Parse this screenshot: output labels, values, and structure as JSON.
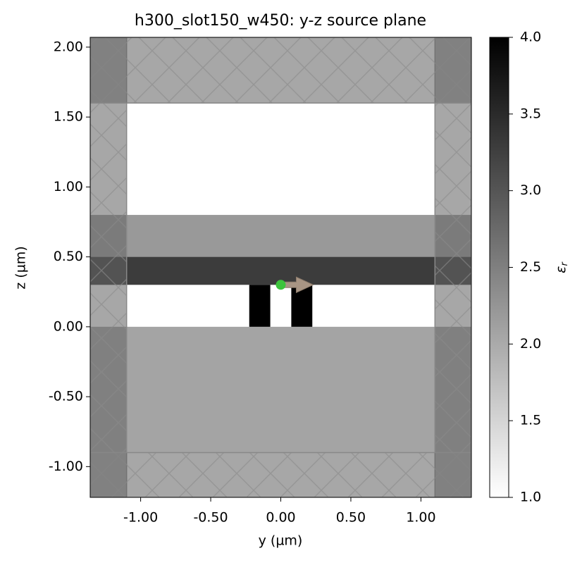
{
  "chart_data": {
    "type": "permittivity",
    "title": "h300_slot150_w450: y-z source plane",
    "xlabel": "y (µm)",
    "ylabel": "z (µm)",
    "xlim": [
      -1.36,
      1.36
    ],
    "ylim": [
      -1.22,
      2.07
    ],
    "xticks": [
      {
        "value": -1,
        "label": "-1.00"
      },
      {
        "value": -0.5,
        "label": "-0.50"
      },
      {
        "value": 0,
        "label": "0.00"
      },
      {
        "value": 0.5,
        "label": "0.50"
      },
      {
        "value": 1,
        "label": "1.00"
      }
    ],
    "yticks": [
      {
        "value": -1,
        "label": "-1.00"
      },
      {
        "value": -0.5,
        "label": "-0.50"
      },
      {
        "value": 0,
        "label": "0.00"
      },
      {
        "value": 0.5,
        "label": "0.50"
      },
      {
        "value": 1,
        "label": "1.00"
      },
      {
        "value": 1.5,
        "label": "1.50"
      },
      {
        "value": 2,
        "label": "2.00"
      }
    ],
    "structures": [
      {
        "y": [
          -1.36,
          1.36
        ],
        "z": [
          -0.9,
          0
        ],
        "eps": 2.07
      },
      {
        "y": [
          -1.36,
          1.36
        ],
        "z": [
          0.5,
          0.8
        ],
        "eps": 2.2
      },
      {
        "y": [
          -1.36,
          1.36
        ],
        "z": [
          0.3,
          0.5
        ],
        "eps": 3.3
      },
      {
        "y": [
          -0.225,
          -0.075
        ],
        "z": [
          0,
          0.3
        ],
        "eps": 4
      },
      {
        "y": [
          0.075,
          0.225
        ],
        "z": [
          0,
          0.3
        ],
        "eps": 4
      }
    ],
    "pml": [
      {
        "y": [
          -1.36,
          -1.1
        ],
        "z": [
          -1.22,
          2.07
        ]
      },
      {
        "y": [
          1.1,
          1.36
        ],
        "z": [
          -1.22,
          2.07
        ]
      },
      {
        "y": [
          -1.36,
          1.36
        ],
        "z": [
          1.6,
          2.07
        ]
      },
      {
        "y": [
          -1.36,
          1.36
        ],
        "z": [
          -1.22,
          -0.9
        ]
      }
    ],
    "source": {
      "y": 0,
      "z": 0.3
    },
    "colorbar": {
      "label": "ε",
      "label_sub": "r",
      "clim": [
        1,
        4
      ],
      "ticks": [
        {
          "value": 1,
          "label": "1.0"
        },
        {
          "value": 1.5,
          "label": "1.5"
        },
        {
          "value": 2,
          "label": "2.0"
        },
        {
          "value": 2.5,
          "label": "2.5"
        },
        {
          "value": 3,
          "label": "3.0"
        },
        {
          "value": 3.5,
          "label": "3.5"
        },
        {
          "value": 4,
          "label": "4.0"
        }
      ]
    }
  }
}
